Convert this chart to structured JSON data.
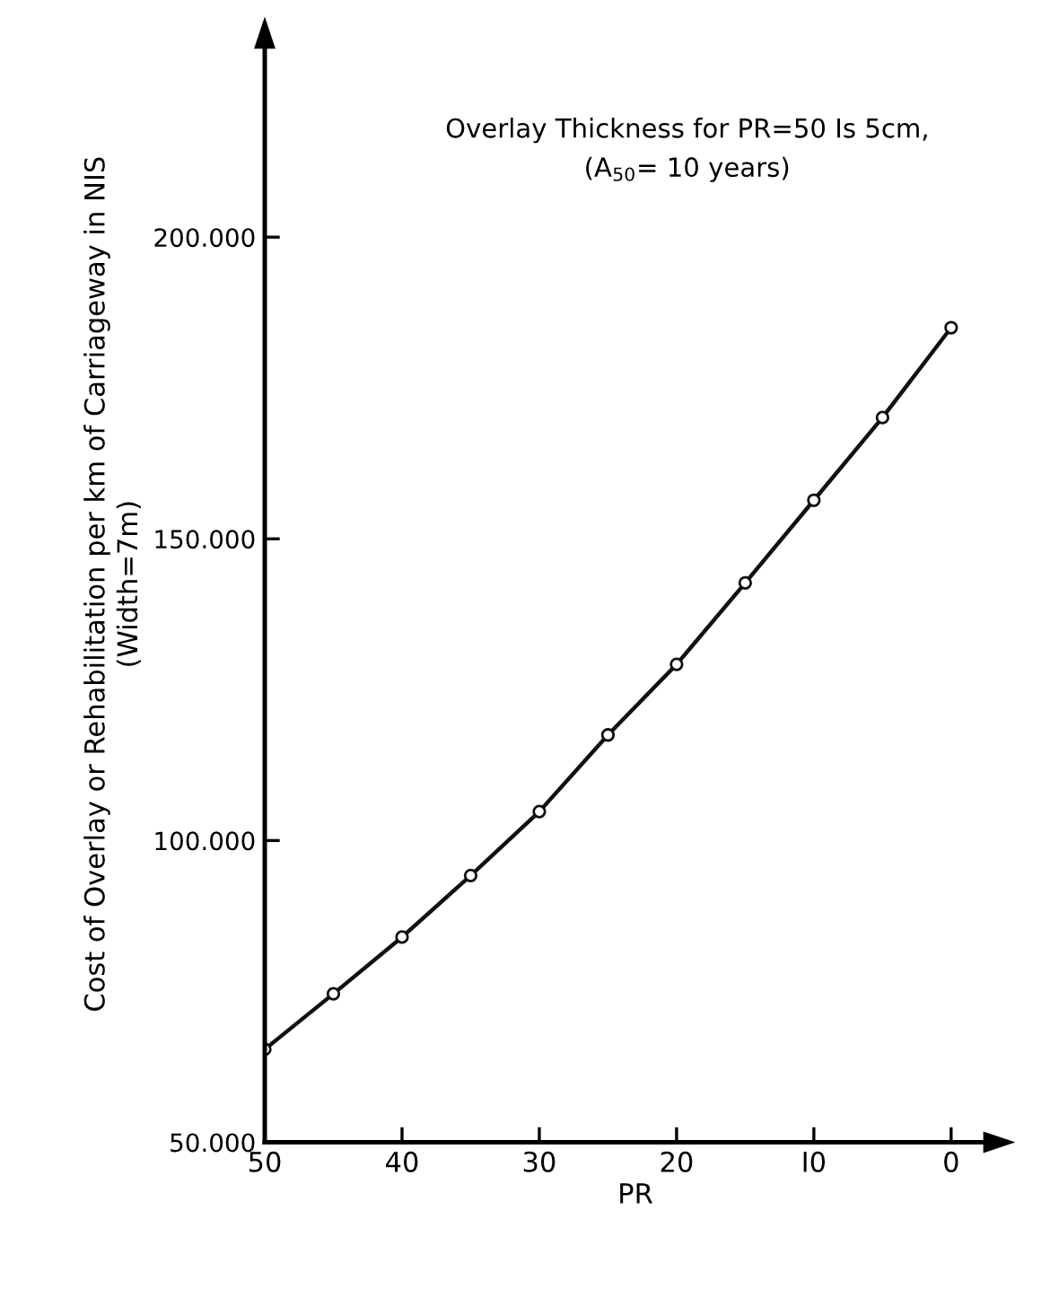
{
  "chart_data": {
    "type": "line",
    "title": "Overlay Thickness for PR=50 Is 5cm,",
    "subtitle": "(A$_{50}$= 10 years)",
    "xlabel": "PR",
    "ylabel": "Cost of Overlay or Rehabilitation per km of Carriageway in NIS\n(Width=7m)",
    "x": [
      50,
      45,
      40,
      35,
      30,
      25,
      20,
      15,
      10,
      5,
      0
    ],
    "series": [
      {
        "color": "#111111",
        "values": [
          65400,
          74600,
          84000,
          94200,
          104800,
          117500,
          129200,
          142700,
          156400,
          170100,
          185000
        ]
      }
    ],
    "xlim": [
      50,
      -4
    ],
    "xticks": [
      50,
      40,
      30,
      20,
      {
        "value": 10,
        "label": "I0"
      },
      0
    ],
    "ylim": [
      50000,
      235000
    ],
    "yticks": [
      {
        "value": 50000,
        "label": "50.000"
      },
      {
        "value": 100000,
        "label": "100.000"
      },
      {
        "value": 150000,
        "label": "150.000"
      },
      {
        "value": 200000,
        "label": "200.000"
      }
    ],
    "marker": "circle",
    "line_style": "solid",
    "grid": false
  }
}
